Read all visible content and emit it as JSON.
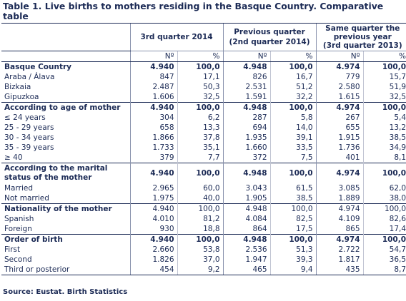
{
  "title": "Table 1. Live births to mothers residing in the Basque Country. Comparative table",
  "columns": {
    "groups": [
      "3rd quarter 2014",
      "Previous quarter (2nd quarter 2014)",
      "Same quarter the previous year (3rd quarter 2013)"
    ],
    "group_lines": [
      [
        "3rd quarter 2014",
        ""
      ],
      [
        "Previous quarter",
        "(2nd quarter 2014)"
      ],
      [
        "Same quarter the",
        "previous year",
        "(3rd quarter 2013)"
      ]
    ],
    "sub": [
      "Nº",
      "%",
      "Nº",
      "%",
      "Nº",
      "%"
    ]
  },
  "rows": [
    {
      "label": "Basque Country",
      "values": [
        "4.940",
        "100,0",
        "4.948",
        "100,0",
        "4.974",
        "100,0"
      ],
      "bold": true,
      "group": true,
      "indent": false
    },
    {
      "label": "Araba / Álava",
      "values": [
        "847",
        "17,1",
        "826",
        "16,7",
        "779",
        "15,7"
      ],
      "bold": false,
      "group": false,
      "indent": true
    },
    {
      "label": "Bizkaia",
      "values": [
        "2.487",
        "50,3",
        "2.531",
        "51,2",
        "2.580",
        "51,9"
      ],
      "bold": false,
      "group": false,
      "indent": true
    },
    {
      "label": "Gipuzkoa",
      "values": [
        "1.606",
        "32,5",
        "1.591",
        "32,2",
        "1.615",
        "32,5"
      ],
      "bold": false,
      "group": false,
      "indent": true
    },
    {
      "label": "According to age of mother",
      "values": [
        "4.940",
        "100,0",
        "4.948",
        "100,0",
        "4.974",
        "100,0"
      ],
      "bold": true,
      "group": true,
      "indent": false
    },
    {
      "label": "≤ 24 years",
      "values": [
        "304",
        "6,2",
        "287",
        "5,8",
        "267",
        "5,4"
      ],
      "bold": false,
      "group": false,
      "indent": true
    },
    {
      "label": "25 - 29 years",
      "values": [
        "658",
        "13,3",
        "694",
        "14,0",
        "655",
        "13,2"
      ],
      "bold": false,
      "group": false,
      "indent": true
    },
    {
      "label": "30 - 34 years",
      "values": [
        "1.866",
        "37,8",
        "1.935",
        "39,1",
        "1.915",
        "38,5"
      ],
      "bold": false,
      "group": false,
      "indent": true
    },
    {
      "label": "35 - 39 years",
      "values": [
        "1.733",
        "35,1",
        "1.660",
        "33,5",
        "1.736",
        "34,9"
      ],
      "bold": false,
      "group": false,
      "indent": true
    },
    {
      "label": "≥ 40",
      "values": [
        "379",
        "7,7",
        "372",
        "7,5",
        "401",
        "8,1"
      ],
      "bold": false,
      "group": false,
      "indent": true
    },
    {
      "label": "According to the marital status of the mother",
      "values": [
        "4.940",
        "100,0",
        "4.948",
        "100,0",
        "4.974",
        "100,0"
      ],
      "bold": true,
      "group": true,
      "indent": false,
      "multiline": true
    },
    {
      "label": "Married",
      "values": [
        "2.965",
        "60,0",
        "3.043",
        "61,5",
        "3.085",
        "62,0"
      ],
      "bold": false,
      "group": false,
      "indent": true
    },
    {
      "label": "Not married",
      "values": [
        "1.975",
        "40,0",
        "1.905",
        "38,5",
        "1.889",
        "38,0"
      ],
      "bold": false,
      "group": false,
      "indent": true
    },
    {
      "label": "Nationality of the mother",
      "values": [
        "4.940",
        "100,0",
        "4.948",
        "100,0",
        "4.974",
        "100,0"
      ],
      "bold": true,
      "group": true,
      "indent": false,
      "plain_values": true
    },
    {
      "label": "Spanish",
      "values": [
        "4.010",
        "81,2",
        "4.084",
        "82,5",
        "4.109",
        "82,6"
      ],
      "bold": false,
      "group": false,
      "indent": true
    },
    {
      "label": "Foreign",
      "values": [
        "930",
        "18,8",
        "864",
        "17,5",
        "865",
        "17,4"
      ],
      "bold": false,
      "group": false,
      "indent": true
    },
    {
      "label": "Order of birth",
      "values": [
        "4.940",
        "100,0",
        "4.948",
        "100,0",
        "4.974",
        "100,0"
      ],
      "bold": true,
      "group": true,
      "indent": false
    },
    {
      "label": "First",
      "values": [
        "2.660",
        "53,8",
        "2.536",
        "51,3",
        "2.722",
        "54,7"
      ],
      "bold": false,
      "group": false,
      "indent": true
    },
    {
      "label": "Second",
      "values": [
        "1.826",
        "37,0",
        "1.947",
        "39,3",
        "1.817",
        "36,5"
      ],
      "bold": false,
      "group": false,
      "indent": true
    },
    {
      "label": "Third or posterior",
      "values": [
        "454",
        "9,2",
        "465",
        "9,4",
        "435",
        "8,7"
      ],
      "bold": false,
      "group": false,
      "indent": true,
      "last": true
    }
  ],
  "source": "Source: Eustat. Birth Statistics"
}
